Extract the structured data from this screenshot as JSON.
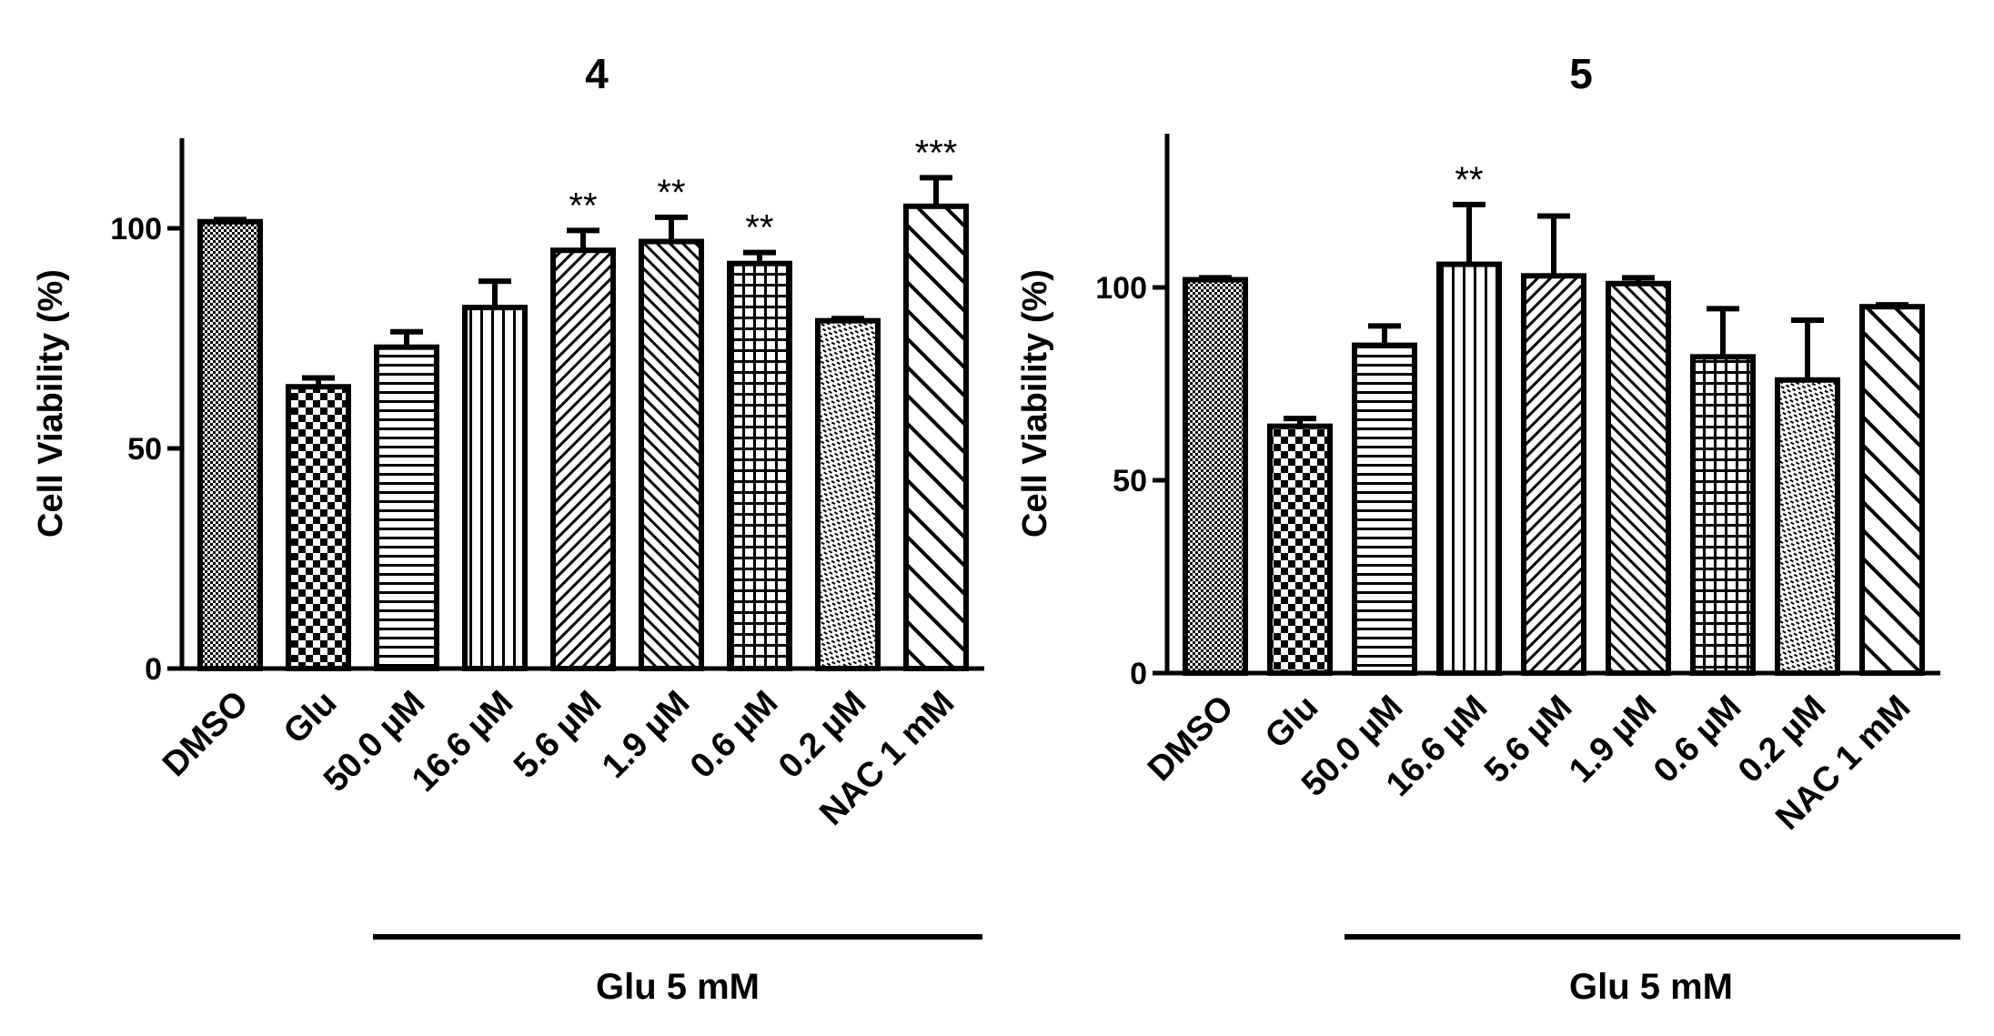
{
  "chart_data": [
    {
      "type": "bar",
      "title": "4",
      "ylabel": "Cell Viability (%)",
      "xlabel": "",
      "ylim": [
        0,
        120
      ],
      "yticks": [
        0,
        50,
        100
      ],
      "categories": [
        "DMSO",
        "Glu",
        "50.0 µM",
        "16.6  µM",
        "5.6 µM",
        "1.9 µM",
        "0.6 µM",
        "0.2 µM",
        "NAC 1 mM"
      ],
      "values": [
        101.5,
        64,
        73,
        82,
        95,
        97,
        92,
        79,
        105
      ],
      "errors": [
        0.5,
        2,
        3.5,
        6,
        4.5,
        5.5,
        2.5,
        0.5,
        6.5
      ],
      "significance": [
        "",
        "",
        "",
        "",
        "**",
        "**",
        "**",
        "",
        "***"
      ],
      "patterns": [
        "fine-dots",
        "checker",
        "horizontal",
        "vertical",
        "diag-up",
        "diag-down",
        "grid",
        "dense-dots",
        "diag-wide"
      ],
      "group_label": "Glu 5 mM"
    },
    {
      "type": "bar",
      "title": "5",
      "ylabel": "Cell Viability (%)",
      "xlabel": "",
      "ylim": [
        0,
        140
      ],
      "yticks": [
        0,
        50,
        100
      ],
      "categories": [
        "DMSO",
        "Glu",
        "50.0 µM",
        "16.6  µM",
        "5.6 µM",
        "1.9 µM",
        "0.6 µM",
        "0.2 µM",
        "NAC 1 mM"
      ],
      "values": [
        102,
        64,
        85,
        106,
        103,
        101,
        82,
        76,
        95
      ],
      "errors": [
        0.5,
        2,
        5,
        15.5,
        15.5,
        1.5,
        12.5,
        15.5,
        0.5
      ],
      "significance": [
        "",
        "",
        "",
        "**",
        "",
        "",
        "",
        "",
        ""
      ],
      "patterns": [
        "fine-dots",
        "checker",
        "horizontal",
        "vertical",
        "diag-up",
        "diag-down",
        "grid",
        "dense-dots",
        "diag-wide"
      ],
      "group_label": "Glu 5 mM"
    }
  ]
}
